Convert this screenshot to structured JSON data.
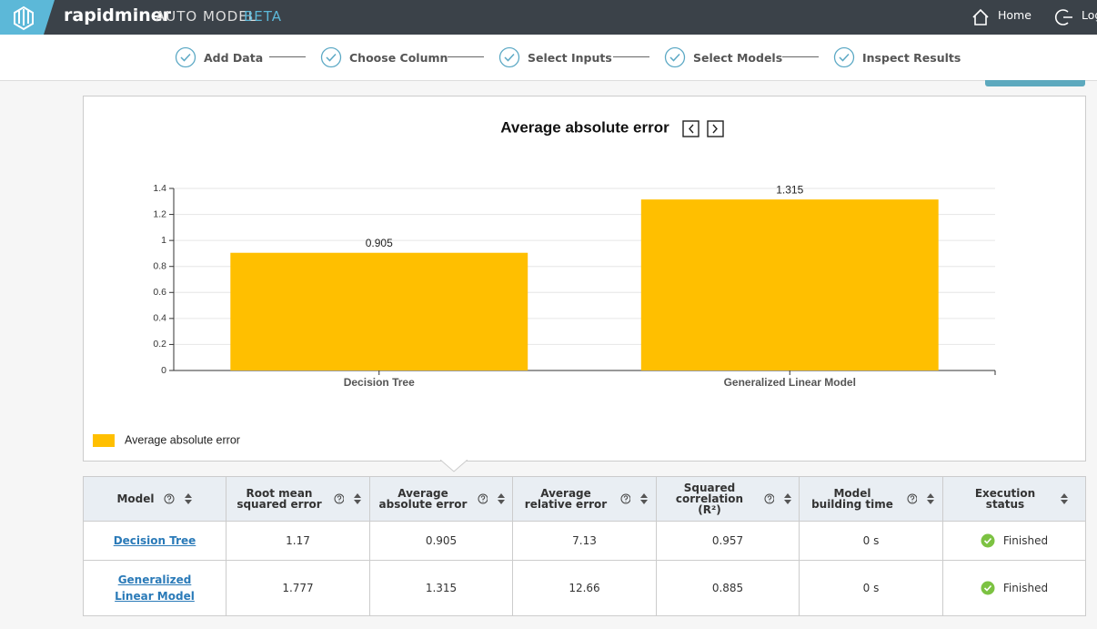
{
  "header": {
    "brand": "rapidminer",
    "product": "AUTO MODEL",
    "badge": "BETA",
    "nav": [
      "Home",
      "Log"
    ]
  },
  "steps": [
    "Add Data",
    "Choose Column",
    "Select Inputs",
    "Select Models",
    "Inspect Results"
  ],
  "chart_data": {
    "type": "bar",
    "title": "Average absolute error",
    "categories": [
      "Decision Tree",
      "Generalized Linear Model"
    ],
    "series": [
      {
        "name": "Average absolute error",
        "color": "#ffbf00",
        "values": [
          0.905,
          1.315
        ]
      }
    ],
    "ylim": [
      0,
      1.4
    ],
    "yticks": [
      0,
      0.2,
      0.4,
      0.6,
      0.8,
      1,
      1.2,
      1.4
    ],
    "grid": true,
    "legend": "bottom-left"
  },
  "table": {
    "columns": [
      "Model",
      "Root mean squared error",
      "Average absolute error",
      "Average relative error",
      "Squared correlation (R²)",
      "Model building time",
      "Execution status"
    ],
    "rows": [
      [
        "Decision Tree",
        1.17,
        0.905,
        7.13,
        0.957,
        "0 s",
        "Finished"
      ],
      [
        "Generalized Linear Model",
        1.777,
        1.315,
        12.66,
        0.885,
        "0 s",
        "Finished"
      ]
    ]
  }
}
